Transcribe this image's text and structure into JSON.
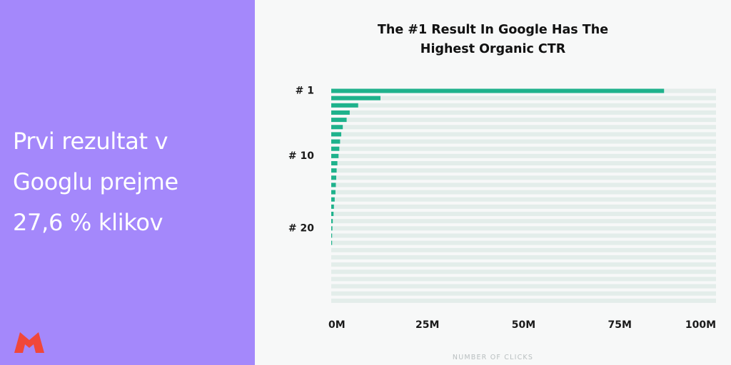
{
  "promo": {
    "headline_lines": [
      "Prvi rezultat v",
      "Googlu prejme",
      "27,6 % klikov"
    ],
    "background_color": "#a488fb",
    "logo_icon": "red-m-logo-icon",
    "logo_color": "#f0473a"
  },
  "chart_data": {
    "type": "bar",
    "orientation": "horizontal",
    "title_lines": [
      "The #1 Result In Google Has The",
      "Highest Organic CTR"
    ],
    "xlabel": "NUMBER OF CLICKS",
    "ylabel": "",
    "xlim": [
      0,
      100
    ],
    "x_unit": "M",
    "x_ticks": [
      "0M",
      "25M",
      "50M",
      "75M",
      "100M"
    ],
    "y_tick_labels": [
      {
        "position": 1,
        "label": "# 1"
      },
      {
        "position": 10,
        "label": "# 10"
      },
      {
        "position": 20,
        "label": "# 20"
      }
    ],
    "categories": [
      1,
      2,
      3,
      4,
      5,
      6,
      7,
      8,
      9,
      10,
      11,
      12,
      13,
      14,
      15,
      16,
      17,
      18,
      19,
      20,
      21,
      22,
      23,
      24,
      25,
      26,
      27,
      28,
      29,
      30
    ],
    "values": [
      86.5,
      12.8,
      7.0,
      4.8,
      4.0,
      3.0,
      2.6,
      2.3,
      2.1,
      1.9,
      1.6,
      1.4,
      1.3,
      1.2,
      1.1,
      0.9,
      0.7,
      0.6,
      0.4,
      0.3,
      0.2,
      0.1,
      0,
      0,
      0,
      0,
      0,
      0,
      0,
      0
    ],
    "bar_color": "#1fb28c",
    "track_color": "#e3edea",
    "grid": false
  }
}
